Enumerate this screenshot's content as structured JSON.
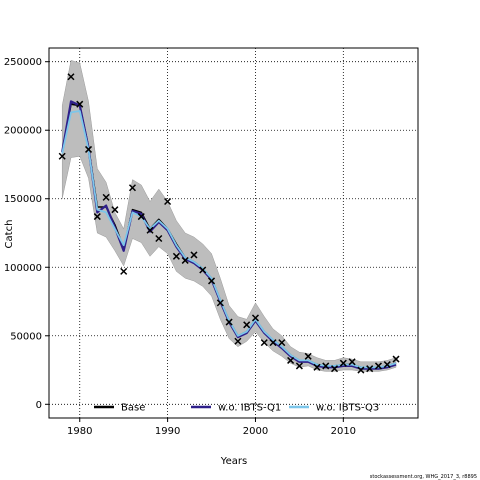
{
  "chart_data": {
    "type": "line",
    "xlabel": "Years",
    "ylabel": "Catch",
    "xlim": [
      1976.5,
      2018.5
    ],
    "ylim": [
      -10000,
      260000
    ],
    "x_ticks": [
      1980,
      1990,
      2000,
      2010
    ],
    "y_ticks": [
      0,
      50000,
      100000,
      150000,
      200000,
      250000
    ],
    "grid": "dotted",
    "legend_position": "bottom",
    "colors": {
      "band": "#bdbdbd",
      "band_edge": "#9a9a9a",
      "base": "#000000",
      "q1": "#2e1f8a",
      "q3": "#7cc6ea",
      "observed": "#000000"
    },
    "years": [
      1978,
      1979,
      1980,
      1981,
      1982,
      1983,
      1984,
      1985,
      1986,
      1987,
      1988,
      1989,
      1990,
      1991,
      1992,
      1993,
      1994,
      1995,
      1996,
      1997,
      1998,
      1999,
      2000,
      2001,
      2002,
      2003,
      2004,
      2005,
      2006,
      2007,
      2008,
      2009,
      2010,
      2011,
      2012,
      2013,
      2014,
      2015,
      2016
    ],
    "band_upper": [
      218000,
      251000,
      249000,
      221000,
      172000,
      162000,
      140000,
      128000,
      164000,
      160000,
      148000,
      157000,
      148000,
      134000,
      125000,
      122000,
      117000,
      110000,
      92000,
      72000,
      64000,
      62000,
      74000,
      64000,
      55000,
      50000,
      42000,
      38000,
      37000,
      34000,
      32000,
      32000,
      34000,
      33000,
      31000,
      31000,
      31000,
      32000,
      34000
    ],
    "band_lower": [
      150000,
      180000,
      181000,
      165000,
      125000,
      122000,
      112000,
      101000,
      121000,
      118000,
      108000,
      115000,
      110000,
      97000,
      92000,
      90000,
      86000,
      79000,
      62000,
      48000,
      42000,
      46000,
      53000,
      45000,
      39000,
      35000,
      30000,
      27000,
      28000,
      25000,
      24000,
      24000,
      25000,
      25000,
      24000,
      24000,
      24000,
      25000,
      27000
    ],
    "series": [
      {
        "name": "Base",
        "values": [
          184000,
          219000,
          218000,
          188000,
          144000,
          144000,
          131000,
          114000,
          142000,
          140000,
          128000,
          135000,
          128000,
          117000,
          107000,
          104000,
          99000,
          92000,
          76000,
          61000,
          50000,
          53000,
          62000,
          53000,
          47000,
          42000,
          36000,
          32000,
          32000,
          29000,
          28000,
          28000,
          29000,
          29000,
          27000,
          27000,
          27000,
          28000,
          30000
        ]
      },
      {
        "name": "w.o. IBTS-Q1",
        "values": [
          184000,
          221000,
          218000,
          187000,
          140000,
          145000,
          129000,
          112000,
          141000,
          139000,
          126000,
          133000,
          127000,
          115000,
          106000,
          103000,
          98000,
          91000,
          75000,
          60000,
          49000,
          52000,
          61000,
          52000,
          46000,
          41000,
          35000,
          31000,
          31000,
          28000,
          27000,
          27000,
          28000,
          28000,
          26000,
          26000,
          26000,
          27000,
          29000
        ]
      },
      {
        "name": "w.o. IBTS-Q3",
        "values": [
          183000,
          213000,
          214000,
          186000,
          142000,
          140000,
          128000,
          116000,
          140000,
          137000,
          128000,
          134000,
          128000,
          116000,
          107000,
          104000,
          99000,
          92000,
          76000,
          61000,
          50000,
          53000,
          62000,
          53000,
          47000,
          42000,
          36000,
          32000,
          32000,
          29000,
          28000,
          28000,
          29000,
          29000,
          27000,
          27000,
          27000,
          28000,
          30000
        ]
      }
    ],
    "observed": [
      181000,
      239000,
      219000,
      186000,
      137000,
      151000,
      142000,
      97000,
      158000,
      137000,
      127000,
      121000,
      148000,
      108000,
      105000,
      109000,
      98000,
      90000,
      74000,
      60000,
      46000,
      58000,
      63000,
      45000,
      45000,
      45000,
      32000,
      28000,
      35000,
      27000,
      28000,
      26000,
      30000,
      31000,
      25000,
      26000,
      28000,
      29000,
      33000
    ]
  },
  "credit": "stockassessment.org, WHG_2017_3, r8895"
}
